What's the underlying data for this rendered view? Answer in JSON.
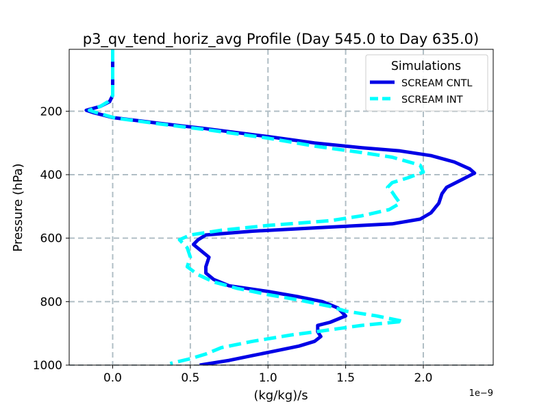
{
  "chart_data": {
    "type": "line",
    "title": "p3_qv_tend_horiz_avg Profile (Day 545.0 to Day 635.0)",
    "xlabel": "(kg/kg)/s",
    "ylabel": "Pressure (hPa)",
    "x_offset_label": "1e−9",
    "xlim": [
      -0.28,
      2.45
    ],
    "ylim": [
      1000,
      5
    ],
    "y_inverted": true,
    "x_ticks": [
      0.0,
      0.5,
      1.0,
      1.5,
      2.0
    ],
    "x_tick_labels": [
      "0.0",
      "0.5",
      "1.0",
      "1.5",
      "2.0"
    ],
    "y_ticks": [
      200,
      400,
      600,
      800,
      1000
    ],
    "y_tick_labels": [
      "200",
      "400",
      "600",
      "800",
      "1000"
    ],
    "grid": true,
    "legend": {
      "title": "Simulations",
      "position": "top-right"
    },
    "series": [
      {
        "name": "SCREAM CNTL",
        "color": "#0000e6",
        "style": "solid",
        "points": [
          [
            0.0,
            5
          ],
          [
            0.0,
            150
          ],
          [
            -0.02,
            170
          ],
          [
            -0.08,
            185
          ],
          [
            -0.17,
            197
          ],
          [
            -0.12,
            205
          ],
          [
            0.0,
            220
          ],
          [
            0.3,
            238
          ],
          [
            0.6,
            255
          ],
          [
            1.0,
            280
          ],
          [
            1.3,
            300
          ],
          [
            1.6,
            315
          ],
          [
            1.85,
            325
          ],
          [
            2.05,
            340
          ],
          [
            2.2,
            360
          ],
          [
            2.3,
            382
          ],
          [
            2.33,
            395
          ],
          [
            2.25,
            415
          ],
          [
            2.15,
            440
          ],
          [
            2.12,
            460
          ],
          [
            2.1,
            490
          ],
          [
            2.05,
            520
          ],
          [
            1.98,
            540
          ],
          [
            1.8,
            555
          ],
          [
            1.4,
            565
          ],
          [
            0.9,
            578
          ],
          [
            0.6,
            590
          ],
          [
            0.55,
            605
          ],
          [
            0.52,
            620
          ],
          [
            0.57,
            640
          ],
          [
            0.62,
            660
          ],
          [
            0.6,
            690
          ],
          [
            0.6,
            710
          ],
          [
            0.65,
            730
          ],
          [
            0.75,
            750
          ],
          [
            1.0,
            768
          ],
          [
            1.2,
            785
          ],
          [
            1.35,
            800
          ],
          [
            1.45,
            820
          ],
          [
            1.5,
            845
          ],
          [
            1.4,
            865
          ],
          [
            1.32,
            875
          ],
          [
            1.32,
            895
          ],
          [
            1.34,
            910
          ],
          [
            1.3,
            925
          ],
          [
            1.2,
            940
          ],
          [
            1.05,
            955
          ],
          [
            0.9,
            970
          ],
          [
            0.75,
            985
          ],
          [
            0.56,
            1000
          ]
        ]
      },
      {
        "name": "SCREAM INT",
        "color": "#00ffff",
        "style": "dashed",
        "points": [
          [
            0.0,
            5
          ],
          [
            0.0,
            150
          ],
          [
            -0.03,
            170
          ],
          [
            -0.08,
            185
          ],
          [
            -0.15,
            197
          ],
          [
            -0.1,
            205
          ],
          [
            0.02,
            222
          ],
          [
            0.3,
            240
          ],
          [
            0.6,
            258
          ],
          [
            1.0,
            285
          ],
          [
            1.3,
            310
          ],
          [
            1.6,
            330
          ],
          [
            1.8,
            345
          ],
          [
            1.98,
            370
          ],
          [
            2.0,
            392
          ],
          [
            1.9,
            410
          ],
          [
            1.8,
            425
          ],
          [
            1.77,
            440
          ],
          [
            1.8,
            455
          ],
          [
            1.82,
            470
          ],
          [
            1.85,
            490
          ],
          [
            1.78,
            510
          ],
          [
            1.6,
            530
          ],
          [
            1.4,
            545
          ],
          [
            1.0,
            560
          ],
          [
            0.7,
            575
          ],
          [
            0.5,
            590
          ],
          [
            0.43,
            605
          ],
          [
            0.48,
            630
          ],
          [
            0.5,
            660
          ],
          [
            0.48,
            690
          ],
          [
            0.55,
            715
          ],
          [
            0.65,
            738
          ],
          [
            0.8,
            758
          ],
          [
            1.0,
            778
          ],
          [
            1.2,
            795
          ],
          [
            1.4,
            815
          ],
          [
            1.5,
            830
          ],
          [
            1.7,
            845
          ],
          [
            1.87,
            862
          ],
          [
            1.6,
            875
          ],
          [
            1.35,
            892
          ],
          [
            1.15,
            905
          ],
          [
            0.9,
            925
          ],
          [
            0.7,
            945
          ],
          [
            0.6,
            965
          ],
          [
            0.5,
            980
          ],
          [
            0.37,
            995
          ]
        ]
      }
    ]
  }
}
